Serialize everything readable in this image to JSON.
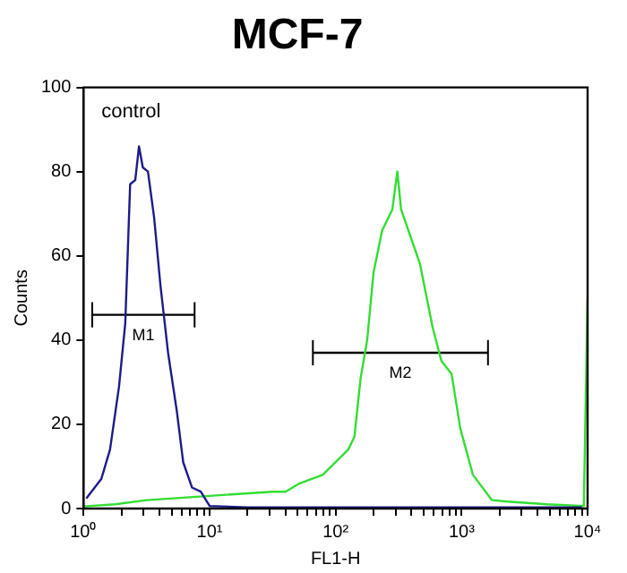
{
  "chart_data": {
    "type": "line",
    "title": "MCF-7",
    "xlabel": "FL1-H",
    "ylabel": "Counts",
    "log": "x",
    "xlim": [
      1,
      10000
    ],
    "ylim": [
      0,
      100
    ],
    "xticks": [
      {
        "value": 1,
        "label": "10⁰"
      },
      {
        "value": 2,
        "label": null
      },
      {
        "value": 3,
        "label": null
      },
      {
        "value": 4,
        "label": null
      },
      {
        "value": 5,
        "label": null
      },
      {
        "value": 6,
        "label": null
      },
      {
        "value": 7,
        "label": null
      },
      {
        "value": 8,
        "label": null
      },
      {
        "value": 9,
        "label": null
      },
      {
        "value": 10,
        "label": "10¹"
      },
      {
        "value": 20,
        "label": null
      },
      {
        "value": 30,
        "label": null
      },
      {
        "value": 40,
        "label": null
      },
      {
        "value": 50,
        "label": null
      },
      {
        "value": 60,
        "label": null
      },
      {
        "value": 70,
        "label": null
      },
      {
        "value": 80,
        "label": null
      },
      {
        "value": 90,
        "label": null
      },
      {
        "value": 100,
        "label": "10²"
      },
      {
        "value": 200,
        "label": null
      },
      {
        "value": 300,
        "label": null
      },
      {
        "value": 400,
        "label": null
      },
      {
        "value": 500,
        "label": null
      },
      {
        "value": 600,
        "label": null
      },
      {
        "value": 700,
        "label": null
      },
      {
        "value": 800,
        "label": null
      },
      {
        "value": 900,
        "label": null
      },
      {
        "value": 1000,
        "label": "10³"
      },
      {
        "value": 2000,
        "label": null
      },
      {
        "value": 3000,
        "label": null
      },
      {
        "value": 4000,
        "label": null
      },
      {
        "value": 5000,
        "label": null
      },
      {
        "value": 6000,
        "label": null
      },
      {
        "value": 7000,
        "label": null
      },
      {
        "value": 8000,
        "label": null
      },
      {
        "value": 9000,
        "label": null
      },
      {
        "value": 10000,
        "label": "10⁴"
      }
    ],
    "yticks": [
      0,
      20,
      40,
      60,
      80,
      100
    ],
    "grid": false,
    "legend": false,
    "marker": "none",
    "line_style": "solid",
    "series": [
      {
        "color": "#1c1c8a",
        "x": [
          1.05,
          1.38,
          1.62,
          1.91,
          2.14,
          2.34,
          2.57,
          2.75,
          2.95,
          3.24,
          3.63,
          4.07,
          4.68,
          5.5,
          6.17,
          7.24,
          8.51,
          10,
          20,
          100,
          1000,
          9000
        ],
        "values": [
          2.4,
          7,
          14,
          29,
          44,
          77,
          78,
          86,
          81,
          80,
          69,
          53,
          37,
          23,
          11,
          5,
          4,
          0.6,
          0.3,
          0.3,
          0.3,
          0.3
        ]
      },
      {
        "color": "#33dd33",
        "x": [
          1,
          1.78,
          3.16,
          10,
          31.6,
          40,
          52,
          79,
          126,
          141,
          158,
          178,
          200,
          234,
          282,
          309,
          331,
          389,
          468,
          589,
          692,
          832,
          977,
          1230,
          1738,
          2455,
          4786,
          9333,
          10000
        ],
        "values": [
          0.5,
          1,
          2,
          3,
          4,
          4,
          6,
          8,
          14,
          17,
          31,
          40,
          56,
          66,
          71,
          80,
          71,
          65,
          58,
          43,
          35,
          32,
          19,
          8,
          2,
          1.6,
          1,
          0.6,
          50
        ]
      },
      {
        "type": "line",
        "name": "M1",
        "color": "#000000",
        "x": [
          1.17,
          7.6
        ],
        "values": [
          46,
          46
        ],
        "errors": [
          3,
          3
        ]
      },
      {
        "type": "line",
        "name": "M2",
        "color": "#000000",
        "x": [
          66,
          1620
        ],
        "values": [
          37,
          37
        ],
        "errors": [
          3,
          3
        ]
      }
    ],
    "annotations": [
      "control"
    ]
  }
}
